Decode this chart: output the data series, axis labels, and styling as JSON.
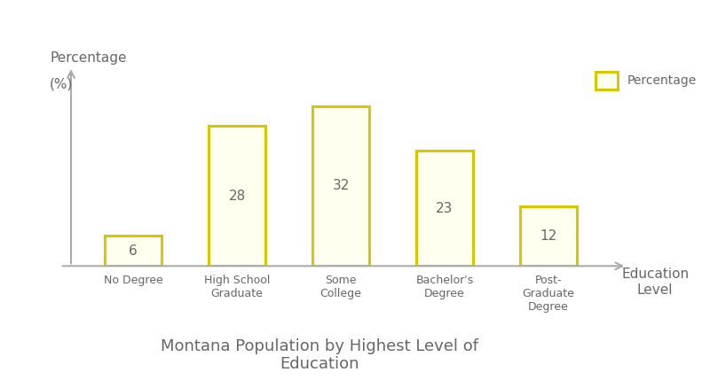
{
  "categories": [
    "No Degree",
    "High School\nGraduate",
    "Some\nCollege",
    "Bachelor's\nDegree",
    "Post-\nGraduate\nDegree"
  ],
  "values": [
    6,
    28,
    32,
    23,
    12
  ],
  "bar_color": "#fffff0",
  "bar_edge_color": "#d4c800",
  "bar_edge_width": 2.2,
  "title_line1": "Montana Population by Highest Level of",
  "title_line2": "Education",
  "ylabel_line1": "Percentage",
  "ylabel_line2": "(%)",
  "xlabel": "Education\nLevel",
  "ylim": [
    0,
    38
  ],
  "bar_labels": [
    6,
    28,
    32,
    23,
    12
  ],
  "legend_label": "Percentage",
  "background_color": "#ffffff",
  "text_color": "#666666",
  "label_fontsize": 11,
  "title_fontsize": 13,
  "tick_fontsize": 9,
  "axis_label_fontsize": 11
}
